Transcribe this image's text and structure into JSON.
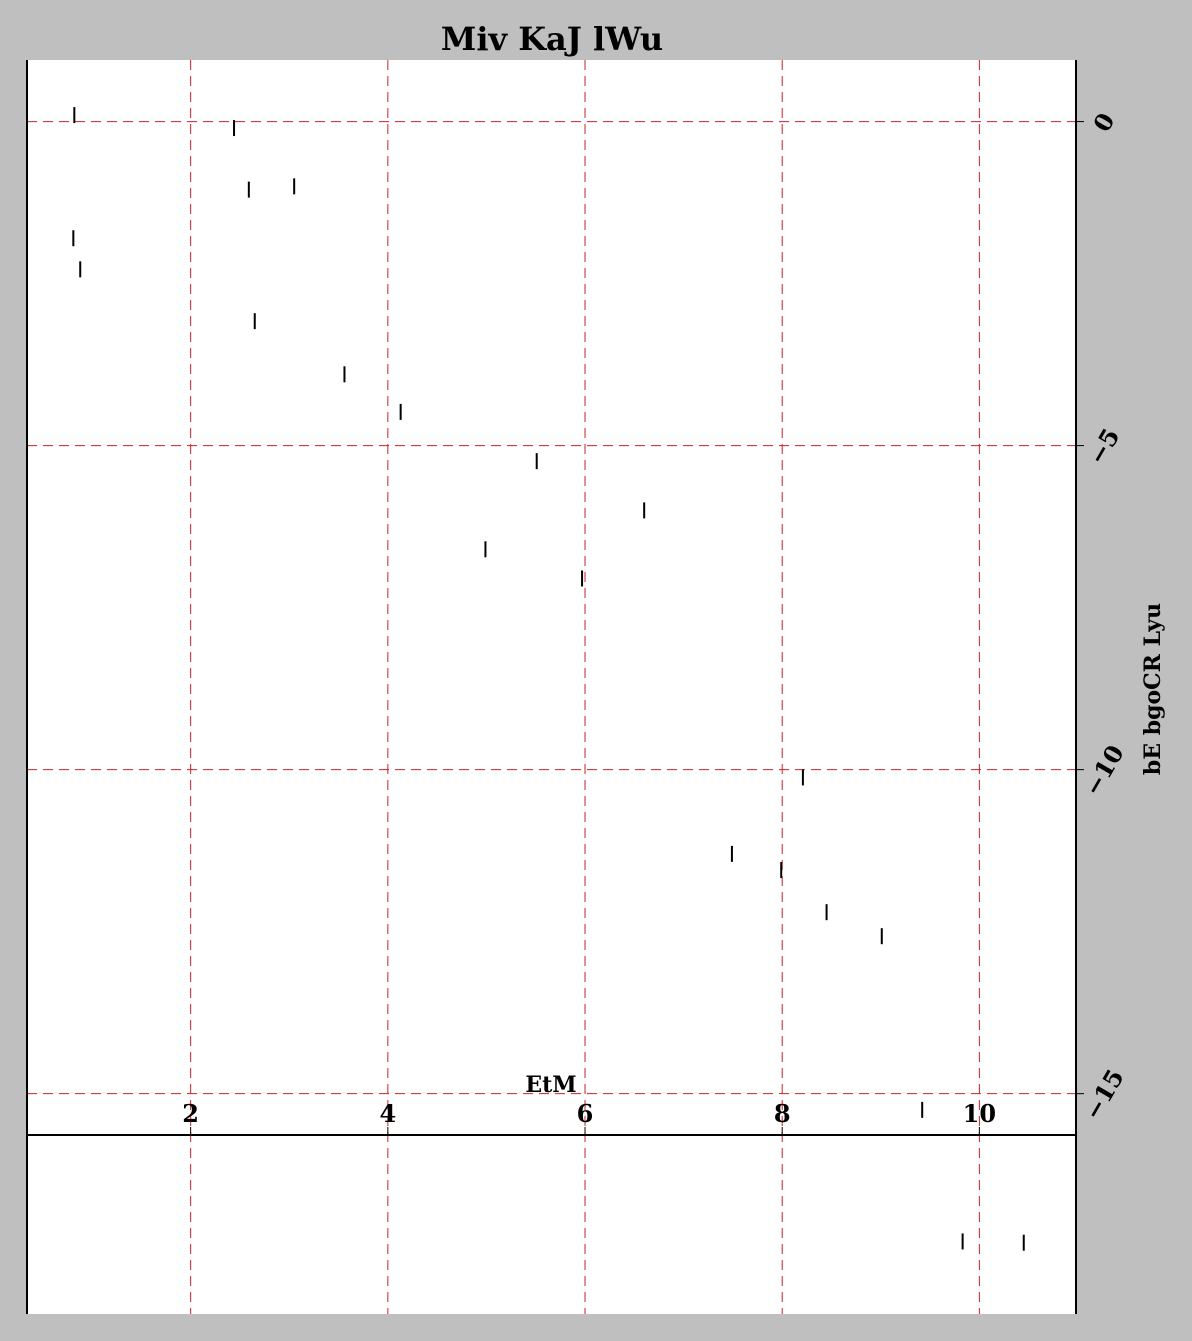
{
  "chart_data": {
    "type": "scatter",
    "title": "Miv KaJ lWu",
    "xlabel": "EtM",
    "ylabel": "bE  bgoCR Lyu",
    "xlim": [
      0.34,
      10.98
    ],
    "ylim": [
      -18.4,
      0.95
    ],
    "x_ticks": [
      2,
      4,
      6,
      8,
      10
    ],
    "y_ticks": [
      0,
      -5,
      -10,
      -15
    ],
    "x_tick_labels": [
      "2",
      "4",
      "6",
      "8",
      "10"
    ],
    "y_tick_labels": [
      "0",
      "−5",
      "−10",
      "−15"
    ],
    "grid": true,
    "marker": "vertical-tick",
    "points": [
      {
        "x": 0.82,
        "y": 0.1
      },
      {
        "x": 2.44,
        "y": -0.1
      },
      {
        "x": 2.59,
        "y": -1.05
      },
      {
        "x": 3.05,
        "y": -1.0
      },
      {
        "x": 0.81,
        "y": -1.8
      },
      {
        "x": 0.88,
        "y": -2.28
      },
      {
        "x": 2.65,
        "y": -3.08
      },
      {
        "x": 3.56,
        "y": -3.9
      },
      {
        "x": 4.13,
        "y": -4.48
      },
      {
        "x": 5.51,
        "y": -5.24
      },
      {
        "x": 6.6,
        "y": -6.0
      },
      {
        "x": 4.99,
        "y": -6.6
      },
      {
        "x": 5.97,
        "y": -7.05
      },
      {
        "x": 8.21,
        "y": -10.12
      },
      {
        "x": 7.49,
        "y": -11.3
      },
      {
        "x": 7.99,
        "y": -11.55
      },
      {
        "x": 8.45,
        "y": -12.2
      },
      {
        "x": 9.01,
        "y": -12.57
      },
      {
        "x": 9.42,
        "y": -15.25
      },
      {
        "x": 9.83,
        "y": -17.28
      },
      {
        "x": 10.45,
        "y": -17.3
      }
    ]
  }
}
